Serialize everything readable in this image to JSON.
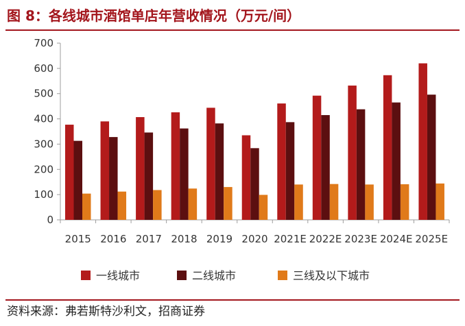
{
  "title": "图 8：各线城市酒馆单店年营收情况（万元/间）",
  "source": "资料来源：弗若斯特沙利文，招商证券",
  "colors": {
    "accent": "#a3151c",
    "series": [
      "#b31b1b",
      "#5c0f10",
      "#e07a1a"
    ],
    "axis": "#9e9e9e"
  },
  "chart_data": {
    "type": "bar",
    "categories": [
      "2015",
      "2016",
      "2017",
      "2018",
      "2019",
      "2020",
      "2021E",
      "2022E",
      "2023E",
      "2024E",
      "2025E"
    ],
    "series": [
      {
        "name": "一线城市",
        "values": [
          377,
          390,
          407,
          426,
          444,
          335,
          461,
          492,
          532,
          573,
          620
        ]
      },
      {
        "name": "二线城市",
        "values": [
          313,
          328,
          346,
          362,
          382,
          284,
          387,
          415,
          438,
          465,
          496
        ]
      },
      {
        "name": "三线及以下城市",
        "values": [
          104,
          112,
          118,
          124,
          130,
          99,
          140,
          142,
          140,
          141,
          144
        ]
      }
    ],
    "yticks": [
      0,
      100,
      200,
      300,
      400,
      500,
      600,
      700
    ],
    "ylim": [
      0,
      700
    ],
    "grid": false,
    "legend": "bottom"
  }
}
